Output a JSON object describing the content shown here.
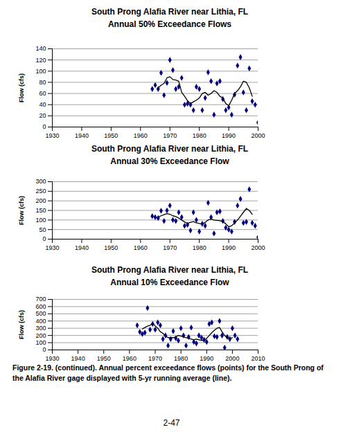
{
  "chart_data": [
    {
      "type": "scatter",
      "title": "South Prong Alafia River near Lithia, FL",
      "subtitle": "Annual 50% Exceedance Flows",
      "y_label": "Flow (cfs)",
      "x": [
        1964,
        1965,
        1966,
        1967,
        1968,
        1969,
        1970,
        1971,
        1972,
        1973,
        1974,
        1975,
        1976,
        1977,
        1978,
        1979,
        1980,
        1981,
        1982,
        1983,
        1984,
        1985,
        1986,
        1987,
        1988,
        1989,
        1990,
        1991,
        1992,
        1993,
        1994,
        1995,
        1996,
        1997,
        1998,
        1999,
        2000
      ],
      "series": [
        {
          "type": "scatter",
          "marker": "diamond",
          "color": "#000080",
          "values": [
            68,
            75,
            68,
            97,
            57,
            79,
            120,
            102,
            68,
            72,
            88,
            40,
            42,
            40,
            30,
            72,
            68,
            30,
            52,
            98,
            82,
            22,
            78,
            82,
            50,
            30,
            35,
            22,
            58,
            110,
            125,
            62,
            30,
            105,
            46,
            40,
            8
          ]
        },
        {
          "type": "line",
          "line_style": "solid",
          "color": "#000000",
          "values": [
            null,
            null,
            70,
            75,
            78,
            88,
            90,
            85,
            84,
            82,
            62,
            55,
            47,
            42,
            45,
            48,
            52,
            60,
            62,
            57,
            60,
            65,
            62,
            55,
            52,
            42,
            38,
            48,
            60,
            65,
            72,
            82,
            80,
            70,
            55,
            null,
            null
          ]
        }
      ],
      "xlim": [
        1930,
        2000
      ],
      "xticks": [
        1930,
        1940,
        1950,
        1960,
        1970,
        1980,
        1990,
        2000
      ],
      "ylim": [
        0,
        140
      ],
      "yticks": [
        0,
        20,
        40,
        60,
        80,
        100,
        120,
        140
      ],
      "grid": true
    },
    {
      "type": "scatter",
      "title": "South Prong Alafia River near Lithia, FL",
      "subtitle": "Annual 30% Exceedance Flow",
      "y_label": "Flow (cfs)",
      "x": [
        1964,
        1965,
        1966,
        1967,
        1968,
        1969,
        1970,
        1971,
        1972,
        1973,
        1974,
        1975,
        1976,
        1977,
        1978,
        1979,
        1980,
        1981,
        1982,
        1983,
        1984,
        1985,
        1986,
        1987,
        1988,
        1989,
        1990,
        1991,
        1992,
        1993,
        1994,
        1995,
        1996,
        1997,
        1998,
        1999,
        2000
      ],
      "series": [
        {
          "type": "scatter",
          "marker": "diamond",
          "color": "#000080",
          "values": [
            120,
            115,
            110,
            148,
            95,
            150,
            175,
            100,
            95,
            140,
            115,
            70,
            75,
            45,
            140,
            100,
            40,
            80,
            70,
            190,
            115,
            30,
            140,
            145,
            95,
            60,
            50,
            40,
            90,
            175,
            210,
            85,
            90,
            260,
            85,
            70,
            10
          ]
        },
        {
          "type": "line",
          "line_style": "solid",
          "color": "#000000",
          "values": [
            null,
            null,
            115,
            122,
            128,
            133,
            130,
            122,
            118,
            110,
            100,
            90,
            82,
            88,
            92,
            85,
            82,
            78,
            88,
            100,
            105,
            100,
            98,
            96,
            92,
            80,
            65,
            70,
            85,
            100,
            120,
            140,
            160,
            150,
            130,
            null,
            null
          ]
        }
      ],
      "xlim": [
        1930,
        2000
      ],
      "xticks": [
        1930,
        1940,
        1950,
        1960,
        1970,
        1980,
        1990,
        2000
      ],
      "ylim": [
        0,
        300
      ],
      "yticks": [
        0,
        50,
        100,
        150,
        200,
        250,
        300
      ],
      "grid": true
    },
    {
      "type": "scatter",
      "title": "South Prong Alafia River near Lithia, FL",
      "subtitle": "Annual 10% Exceedance Flow",
      "y_label": "Flow (cfs)",
      "x": [
        1963,
        1964,
        1965,
        1966,
        1967,
        1968,
        1969,
        1970,
        1971,
        1972,
        1973,
        1974,
        1975,
        1976,
        1977,
        1978,
        1979,
        1980,
        1981,
        1982,
        1983,
        1984,
        1985,
        1986,
        1987,
        1988,
        1989,
        1990,
        1991,
        1992,
        1993,
        1994,
        1995,
        1996,
        1997,
        1998,
        1999,
        2000,
        2001,
        2002
      ],
      "series": [
        {
          "type": "scatter",
          "marker": "diamond",
          "color": "#000080",
          "values": [
            340,
            250,
            220,
            240,
            580,
            280,
            360,
            280,
            380,
            340,
            150,
            200,
            60,
            150,
            260,
            160,
            130,
            300,
            200,
            60,
            180,
            310,
            110,
            90,
            200,
            170,
            140,
            110,
            360,
            380,
            190,
            180,
            400,
            200,
            30,
            180,
            150,
            300,
            200,
            150
          ]
        },
        {
          "type": "line",
          "line_style": "solid",
          "color": "#000000",
          "values": [
            null,
            null,
            290,
            310,
            330,
            340,
            370,
            330,
            300,
            250,
            230,
            190,
            170,
            170,
            170,
            180,
            200,
            190,
            180,
            170,
            160,
            150,
            140,
            150,
            140,
            130,
            130,
            160,
            200,
            240,
            270,
            300,
            310,
            250,
            200,
            170,
            160,
            170,
            null,
            null
          ]
        }
      ],
      "xlim": [
        1930,
        2010
      ],
      "xticks": [
        1930,
        1940,
        1950,
        1960,
        1970,
        1980,
        1990,
        2000,
        2010
      ],
      "ylim": [
        0,
        700
      ],
      "yticks": [
        0,
        100,
        200,
        300,
        400,
        500,
        600,
        700
      ],
      "grid": true
    }
  ],
  "caption": "Figure 2-19. (continued). Annual percent exceedance flows (points) for the South Prong of the Alafia River gage displayed with 5-yr running average (line).",
  "page_number": "2-47"
}
